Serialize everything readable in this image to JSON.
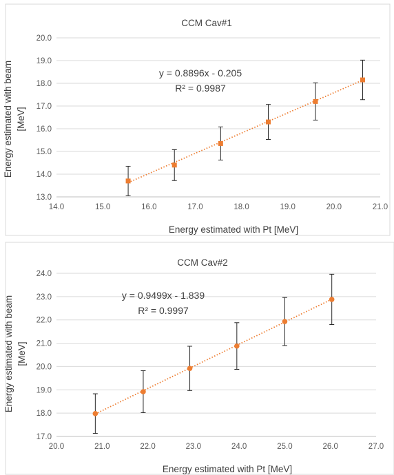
{
  "chart_data": [
    {
      "type": "scatter",
      "title": "CCM Cav#1",
      "xlabel": "Energy estimated with Pt [MeV]",
      "ylabel_lines": [
        "Energy estimated with beam",
        "[MeV]"
      ],
      "xlim": [
        14.0,
        21.0
      ],
      "ylim": [
        13.0,
        20.0
      ],
      "xticks": [
        "14.0",
        "15.0",
        "16.0",
        "17.0",
        "18.0",
        "19.0",
        "20.0",
        "21.0"
      ],
      "yticks": [
        "13.0",
        "14.0",
        "15.0",
        "16.0",
        "17.0",
        "18.0",
        "19.0",
        "20.0"
      ],
      "grid": true,
      "marker": "square",
      "color": "#ED7D31",
      "points": [
        {
          "x": 15.55,
          "y": 13.7,
          "err": 0.65
        },
        {
          "x": 16.55,
          "y": 14.4,
          "err": 0.68
        },
        {
          "x": 17.55,
          "y": 15.35,
          "err": 0.73
        },
        {
          "x": 18.58,
          "y": 16.3,
          "err": 0.77
        },
        {
          "x": 19.6,
          "y": 17.2,
          "err": 0.82
        },
        {
          "x": 20.62,
          "y": 18.15,
          "err": 0.87
        }
      ],
      "trendline": {
        "slope": 0.8896,
        "intercept": -0.205,
        "x_range": [
          15.55,
          20.62
        ]
      },
      "equation": "y = 0.8896x - 0.205",
      "r2": "R² = 0.9987"
    },
    {
      "type": "scatter",
      "title": "CCM Cav#2",
      "xlabel": "Energy estimated with Pt [MeV]",
      "ylabel_lines": [
        "Energy estimated with beam",
        "[MeV]"
      ],
      "xlim": [
        20.0,
        27.0
      ],
      "ylim": [
        17.0,
        24.0
      ],
      "xticks": [
        "20.0",
        "21.0",
        "22.0",
        "23.0",
        "24.0",
        "25.0",
        "26.0",
        "27.0"
      ],
      "yticks": [
        "17.0",
        "18.0",
        "19.0",
        "20.0",
        "21.0",
        "22.0",
        "23.0",
        "24.0"
      ],
      "grid": true,
      "marker": "circle",
      "color": "#ED7D31",
      "points": [
        {
          "x": 20.85,
          "y": 17.98,
          "err": 0.85
        },
        {
          "x": 21.9,
          "y": 18.92,
          "err": 0.9
        },
        {
          "x": 22.92,
          "y": 19.92,
          "err": 0.95
        },
        {
          "x": 23.95,
          "y": 20.88,
          "err": 1.0
        },
        {
          "x": 25.0,
          "y": 21.93,
          "err": 1.03
        },
        {
          "x": 26.03,
          "y": 22.88,
          "err": 1.08
        }
      ],
      "trendline": {
        "slope": 0.9499,
        "intercept": -1.839,
        "x_range": [
          20.85,
          26.03
        ]
      },
      "equation": "y = 0.9499x - 1.839",
      "r2": "R² = 0.9997"
    }
  ]
}
